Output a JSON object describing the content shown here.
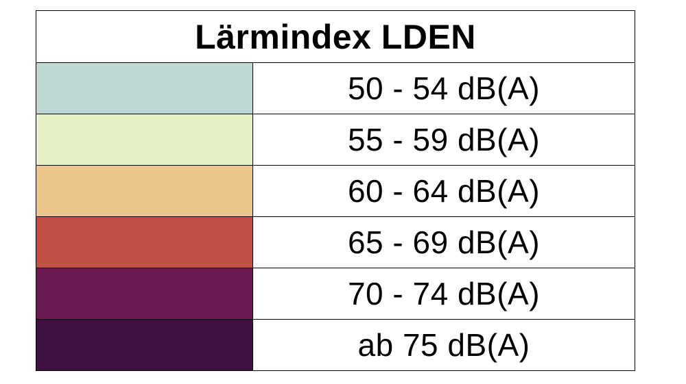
{
  "title": "Lärmindex LDEN",
  "rows": [
    {
      "label": "50 - 54 dB(A)",
      "color": "#c0d6d3"
    },
    {
      "label": "55 - 59 dB(A)",
      "color": "#e5f0c6"
    },
    {
      "label": "60 - 64 dB(A)",
      "color": "#ebc58c"
    },
    {
      "label": "65 - 69 dB(A)",
      "color": "#bf5046"
    },
    {
      "label": "70 - 74 dB(A)",
      "color": "#6a1953"
    },
    {
      "label": "ab 75 dB(A)",
      "color": "#3e1042"
    }
  ]
}
